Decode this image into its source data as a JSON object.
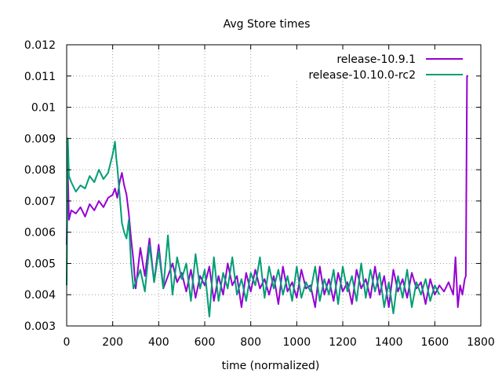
{
  "chart_data": {
    "type": "line",
    "title": "Avg Store times",
    "xlabel": "time (normalized)",
    "ylabel": "",
    "xlim": [
      0,
      1800
    ],
    "ylim": [
      0.003,
      0.012
    ],
    "x_ticks": [
      0,
      200,
      400,
      600,
      800,
      1000,
      1200,
      1400,
      1600,
      1800
    ],
    "x_tick_labels": [
      "0",
      "200",
      "400",
      "600",
      "800",
      "1000",
      "1200",
      "1400",
      "1600",
      "1800"
    ],
    "y_ticks": [
      0.003,
      0.004,
      0.005,
      0.006,
      0.007,
      0.008,
      0.009,
      0.01,
      0.011,
      0.012
    ],
    "y_tick_labels": [
      "0.003",
      "0.004",
      "0.005",
      "0.006",
      "0.007",
      "0.008",
      "0.009",
      "0.01",
      "0.011",
      "0.012"
    ],
    "grid": true,
    "legend_position": "top-right",
    "series": [
      {
        "name": "release-10.9.1",
        "color": "#9400d3",
        "x": [
          0,
          5,
          10,
          20,
          40,
          60,
          80,
          100,
          120,
          140,
          160,
          180,
          200,
          210,
          220,
          230,
          240,
          250,
          260,
          270,
          280,
          290,
          300,
          320,
          340,
          360,
          380,
          400,
          420,
          440,
          460,
          480,
          500,
          520,
          540,
          560,
          580,
          600,
          620,
          640,
          660,
          680,
          700,
          720,
          740,
          760,
          780,
          800,
          820,
          840,
          860,
          880,
          900,
          920,
          940,
          960,
          980,
          1000,
          1020,
          1040,
          1060,
          1080,
          1100,
          1120,
          1140,
          1160,
          1180,
          1200,
          1220,
          1240,
          1260,
          1280,
          1300,
          1320,
          1340,
          1360,
          1380,
          1400,
          1420,
          1440,
          1460,
          1480,
          1500,
          1520,
          1540,
          1560,
          1580,
          1600,
          1620,
          1640,
          1660,
          1680,
          1690,
          1700,
          1710,
          1720,
          1730,
          1735,
          1740,
          1745
        ],
        "y": [
          0.0056,
          0.008,
          0.0064,
          0.0067,
          0.0066,
          0.0068,
          0.0065,
          0.0069,
          0.0067,
          0.007,
          0.0068,
          0.0071,
          0.0072,
          0.0074,
          0.0071,
          0.0076,
          0.0079,
          0.0075,
          0.0072,
          0.0066,
          0.0058,
          0.0051,
          0.0042,
          0.0055,
          0.0046,
          0.0058,
          0.0044,
          0.0056,
          0.0042,
          0.0046,
          0.005,
          0.0044,
          0.0047,
          0.0041,
          0.0048,
          0.0039,
          0.0046,
          0.0043,
          0.0049,
          0.0038,
          0.0046,
          0.004,
          0.005,
          0.0043,
          0.0046,
          0.0036,
          0.0047,
          0.0041,
          0.0048,
          0.0042,
          0.0045,
          0.004,
          0.0046,
          0.0037,
          0.0049,
          0.0041,
          0.0044,
          0.0039,
          0.0048,
          0.0042,
          0.0043,
          0.0036,
          0.0049,
          0.004,
          0.0045,
          0.0038,
          0.0047,
          0.0041,
          0.0044,
          0.0037,
          0.0048,
          0.0042,
          0.0045,
          0.0039,
          0.0049,
          0.004,
          0.0046,
          0.0036,
          0.0048,
          0.0041,
          0.0045,
          0.0039,
          0.0047,
          0.0042,
          0.0044,
          0.0037,
          0.0045,
          0.004,
          0.0043,
          0.0041,
          0.0044,
          0.004,
          0.0052,
          0.0036,
          0.0043,
          0.004,
          0.0045,
          0.0046,
          0.011,
          0.011
        ]
      },
      {
        "name": "release-10.10.0-rc2",
        "color": "#009e73",
        "x": [
          0,
          5,
          10,
          20,
          40,
          60,
          80,
          100,
          120,
          140,
          160,
          180,
          200,
          210,
          215,
          220,
          230,
          240,
          250,
          260,
          270,
          280,
          290,
          300,
          320,
          340,
          360,
          380,
          400,
          420,
          440,
          460,
          480,
          500,
          520,
          540,
          560,
          580,
          600,
          620,
          640,
          660,
          680,
          700,
          720,
          740,
          760,
          780,
          800,
          820,
          840,
          860,
          880,
          900,
          920,
          940,
          960,
          980,
          1000,
          1020,
          1040,
          1060,
          1080,
          1100,
          1120,
          1140,
          1160,
          1180,
          1200,
          1220,
          1240,
          1260,
          1280,
          1300,
          1320,
          1340,
          1360,
          1380,
          1400,
          1420,
          1440,
          1460,
          1480,
          1500,
          1520,
          1540,
          1560,
          1580,
          1600,
          1620
        ],
        "y": [
          0.0043,
          0.009,
          0.0078,
          0.0076,
          0.0073,
          0.0075,
          0.0074,
          0.0078,
          0.0076,
          0.008,
          0.0077,
          0.0079,
          0.0085,
          0.0089,
          0.0084,
          0.0081,
          0.0072,
          0.0063,
          0.006,
          0.0058,
          0.0064,
          0.005,
          0.0042,
          0.0044,
          0.0048,
          0.0041,
          0.0056,
          0.0044,
          0.0054,
          0.0042,
          0.0059,
          0.004,
          0.0052,
          0.0045,
          0.005,
          0.0038,
          0.0053,
          0.0042,
          0.0048,
          0.0033,
          0.0052,
          0.0038,
          0.0047,
          0.0042,
          0.0052,
          0.004,
          0.0045,
          0.0038,
          0.0047,
          0.0043,
          0.0052,
          0.0039,
          0.0049,
          0.0042,
          0.0048,
          0.004,
          0.0046,
          0.0038,
          0.0049,
          0.0039,
          0.0044,
          0.0041,
          0.0049,
          0.0038,
          0.0045,
          0.004,
          0.0048,
          0.0037,
          0.0049,
          0.0041,
          0.0046,
          0.0038,
          0.005,
          0.0039,
          0.0048,
          0.0041,
          0.0047,
          0.0036,
          0.0044,
          0.0034,
          0.0046,
          0.0039,
          0.0048,
          0.0036,
          0.0044,
          0.004,
          0.0045,
          0.0038,
          0.0043,
          0.004
        ]
      }
    ]
  }
}
